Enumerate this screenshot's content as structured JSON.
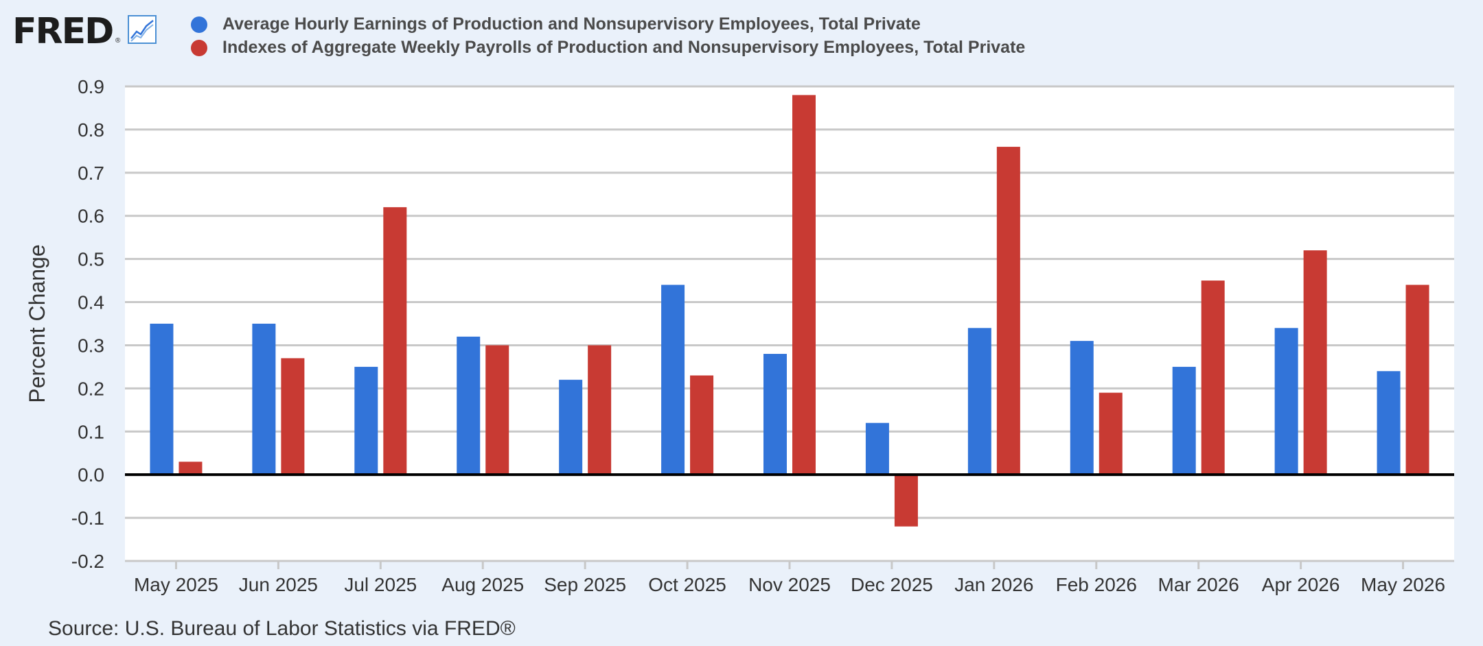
{
  "logo": {
    "text": "FRED",
    "mark": "®"
  },
  "legend": [
    {
      "label": "Average Hourly Earnings of Production and Nonsupervisory Employees, Total Private",
      "color": "#3274d9"
    },
    {
      "label": "Indexes of Aggregate Weekly Payrolls of Production and Nonsupervisory Employees, Total Private",
      "color": "#c83a33"
    }
  ],
  "footer": {
    "source": "Source: U.S. Bureau of Labor Statistics via FRED®"
  },
  "chart_data": {
    "type": "bar",
    "ylabel": "Percent Change",
    "ylim": [
      -0.2,
      0.9
    ],
    "yticks": [
      "0.9",
      "0.8",
      "0.7",
      "0.6",
      "0.5",
      "0.4",
      "0.3",
      "0.2",
      "0.1",
      "0.0",
      "-0.1",
      "-0.2"
    ],
    "grid": true,
    "categories": [
      "May 2025",
      "Jun 2025",
      "Jul 2025",
      "Aug 2025",
      "Sep 2025",
      "Oct 2025",
      "Nov 2025",
      "Dec 2025",
      "Jan 2026",
      "Feb 2026",
      "Mar 2026",
      "Apr 2026",
      "May 2026"
    ],
    "series": [
      {
        "name": "Average Hourly Earnings of Production and Nonsupervisory Employees, Total Private",
        "color": "#3274d9",
        "values": [
          0.35,
          0.35,
          0.25,
          0.32,
          0.22,
          0.44,
          0.28,
          0.12,
          0.34,
          0.31,
          0.25,
          0.34,
          0.24
        ]
      },
      {
        "name": "Indexes of Aggregate Weekly Payrolls of Production and Nonsupervisory Employees, Total Private",
        "color": "#c83a33",
        "values": [
          0.03,
          0.27,
          0.62,
          0.3,
          0.3,
          0.23,
          0.88,
          -0.12,
          0.76,
          0.19,
          0.45,
          0.52,
          0.44
        ]
      }
    ]
  }
}
